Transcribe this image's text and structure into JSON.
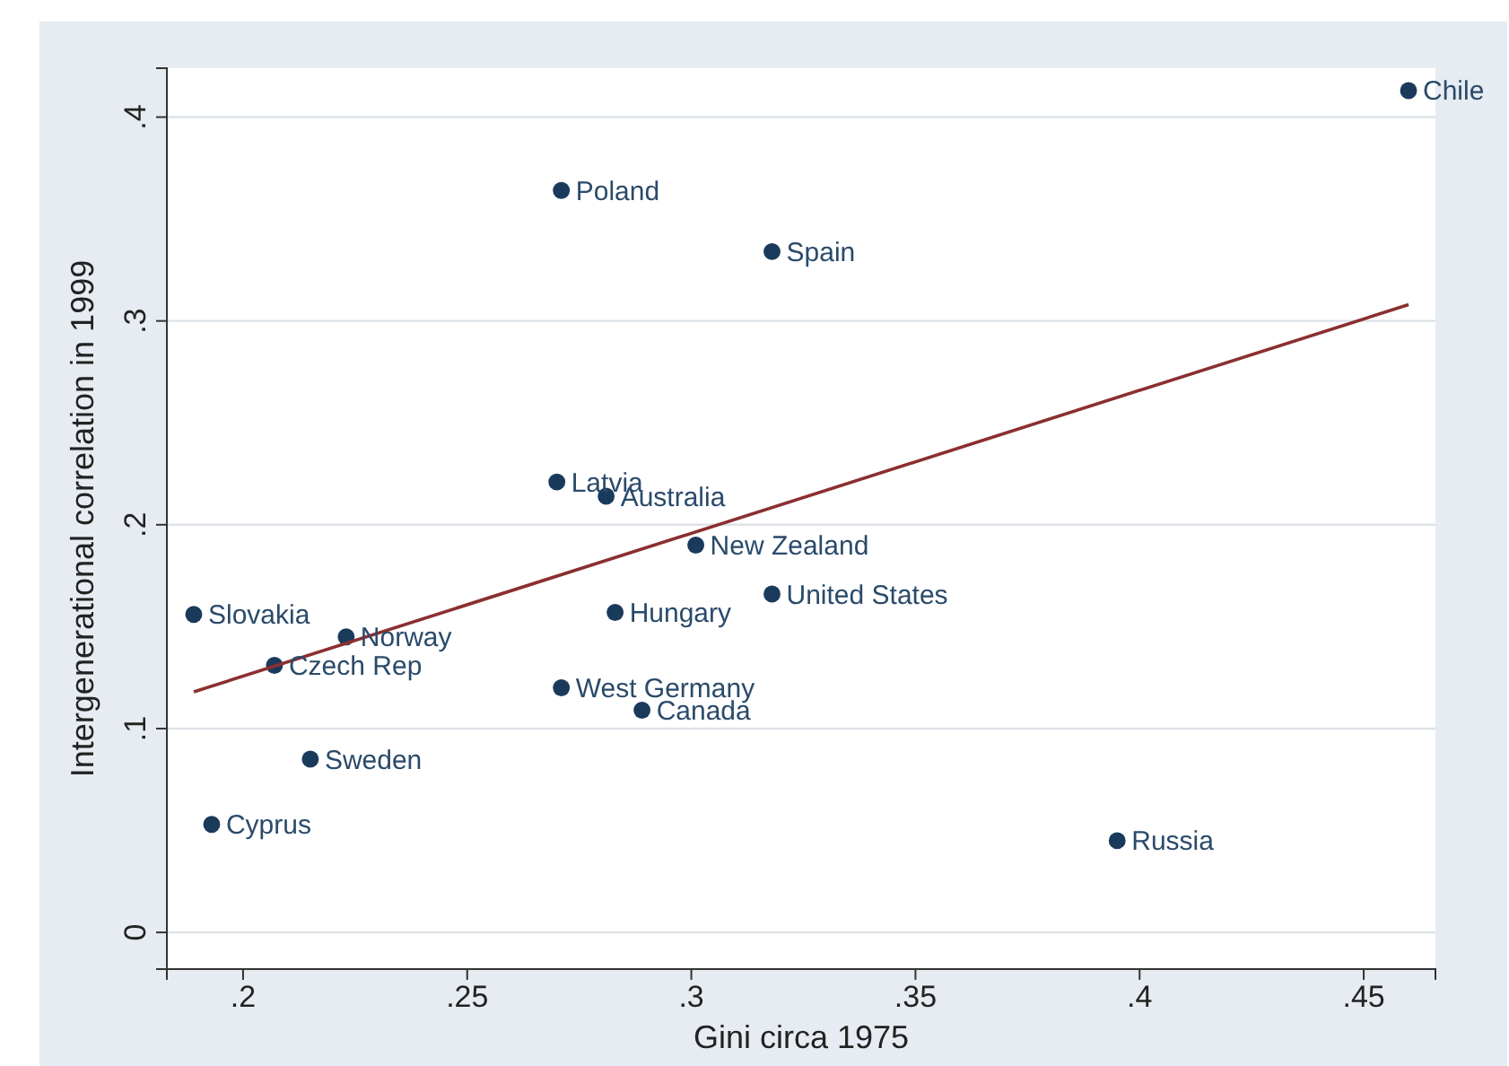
{
  "chart_data": {
    "type": "scatter",
    "xlabel": "Gini circa 1975",
    "ylabel": "Intergenerational correlation in 1999",
    "xlim": [
      0.183,
      0.466
    ],
    "ylim": [
      -0.018,
      0.424
    ],
    "xticks": [
      {
        "value": 0.2,
        "label": ".2"
      },
      {
        "value": 0.25,
        "label": ".25"
      },
      {
        "value": 0.3,
        "label": ".3"
      },
      {
        "value": 0.35,
        "label": ".35"
      },
      {
        "value": 0.4,
        "label": ".4"
      },
      {
        "value": 0.45,
        "label": ".45"
      }
    ],
    "yticks": [
      0,
      {
        "value": 0.1,
        "label": ".1"
      },
      {
        "value": 0.2,
        "label": ".2"
      },
      {
        "value": 0.3,
        "label": ".3"
      },
      {
        "value": 0.4,
        "label": ".4"
      }
    ],
    "grid": "y",
    "series": [
      {
        "marker": "circle",
        "color": "#1a3a5c",
        "x": [
          0.46,
          0.271,
          0.318,
          0.27,
          0.281,
          0.301,
          0.318,
          0.283,
          0.189,
          0.223,
          0.207,
          0.271,
          0.289,
          0.215,
          0.193,
          0.395
        ],
        "values": [
          0.413,
          0.364,
          0.334,
          0.221,
          0.214,
          0.19,
          0.166,
          0.157,
          0.156,
          0.145,
          0.131,
          0.12,
          0.109,
          0.085,
          0.053,
          0.045
        ]
      },
      {
        "type": "line",
        "color": "#8b2f2f",
        "x": [
          0.189,
          0.46
        ],
        "values": [
          0.118,
          0.308
        ]
      }
    ],
    "annotations": [
      {
        "text": "Chile",
        "x": 0.46,
        "y": 0.413
      },
      {
        "text": "Poland",
        "x": 0.271,
        "y": 0.364
      },
      {
        "text": "Spain",
        "x": 0.318,
        "y": 0.334
      },
      {
        "text": "Latvia",
        "x": 0.27,
        "y": 0.221
      },
      {
        "text": "Australia",
        "x": 0.281,
        "y": 0.214
      },
      {
        "text": "New Zealand",
        "x": 0.301,
        "y": 0.19
      },
      {
        "text": "United States",
        "x": 0.318,
        "y": 0.166
      },
      {
        "text": "Hungary",
        "x": 0.283,
        "y": 0.157
      },
      {
        "text": "Slovakia",
        "x": 0.189,
        "y": 0.156
      },
      {
        "text": "Norway",
        "x": 0.223,
        "y": 0.145
      },
      {
        "text": "Czech Rep",
        "x": 0.207,
        "y": 0.131
      },
      {
        "text": "West Germany",
        "x": 0.271,
        "y": 0.12
      },
      {
        "text": "Canada",
        "x": 0.289,
        "y": 0.109
      },
      {
        "text": "Sweden",
        "x": 0.215,
        "y": 0.085
      },
      {
        "text": "Cyprus",
        "x": 0.193,
        "y": 0.053
      },
      {
        "text": "Russia",
        "x": 0.395,
        "y": 0.045
      }
    ]
  }
}
